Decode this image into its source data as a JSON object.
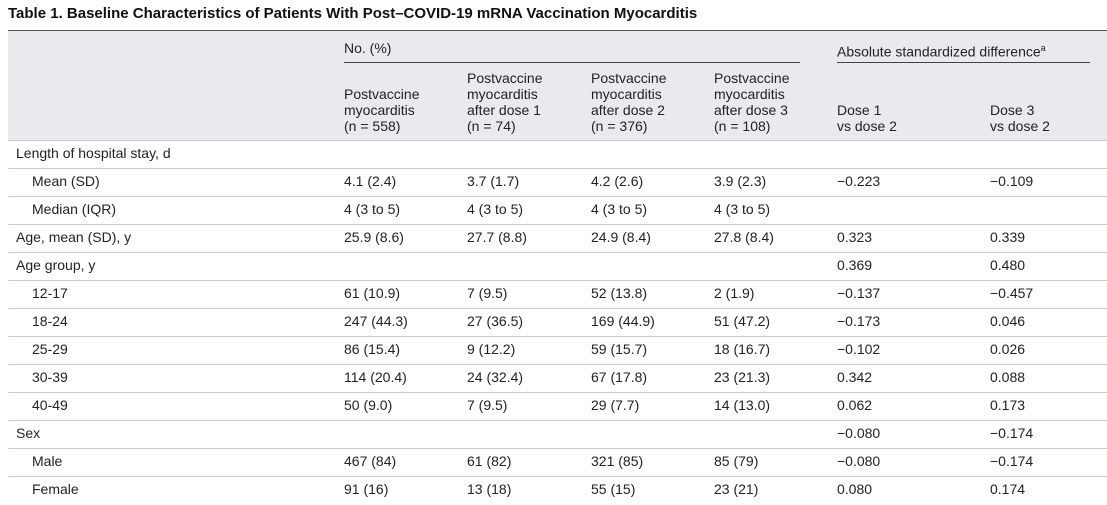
{
  "title": "Table 1. Baseline Characteristics of Patients With Post–COVID-19 mRNA Vaccination Myocarditis",
  "table": {
    "group_headers": [
      {
        "label": "No. (%)"
      },
      {
        "label": "Absolute standardized difference",
        "footnote": "a"
      }
    ],
    "columns": [
      [
        "Postvaccine",
        "myocarditis",
        "(n = 558)"
      ],
      [
        "Postvaccine",
        "myocarditis",
        "after dose 1",
        "(n = 74)"
      ],
      [
        "Postvaccine",
        "myocarditis",
        "after dose 2",
        "(n = 376)"
      ],
      [
        "Postvaccine",
        "myocarditis",
        "after dose 3",
        "(n = 108)"
      ],
      [
        "Dose 1",
        "vs dose 2"
      ],
      [
        "Dose 3",
        "vs dose 2"
      ]
    ],
    "rows": [
      {
        "label": "Length of hospital stay, d",
        "indent": false,
        "cells": [
          null,
          null,
          null,
          null,
          null,
          null
        ]
      },
      {
        "label": "Mean (SD)",
        "indent": true,
        "cells": [
          "4.1 (2.4)",
          "3.7 (1.7)",
          "4.2 (2.6)",
          "3.9 (2.3)",
          "−0.223",
          "−0.109"
        ]
      },
      {
        "label": "Median (IQR)",
        "indent": true,
        "cells": [
          "4 (3 to 5)",
          "4 (3 to 5)",
          "4 (3 to 5)",
          "4 (3 to 5)",
          null,
          null
        ]
      },
      {
        "label": "Age, mean (SD), y",
        "indent": false,
        "cells": [
          "25.9 (8.6)",
          "27.7 (8.8)",
          "24.9 (8.4)",
          "27.8 (8.4)",
          "0.323",
          "0.339"
        ]
      },
      {
        "label": "Age group, y",
        "indent": false,
        "cells": [
          null,
          null,
          null,
          null,
          "0.369",
          "0.480"
        ]
      },
      {
        "label": "12-17",
        "indent": true,
        "cells": [
          "61 (10.9)",
          "7 (9.5)",
          "52 (13.8)",
          "2 (1.9)",
          "−0.137",
          "−0.457"
        ]
      },
      {
        "label": "18-24",
        "indent": true,
        "cells": [
          "247 (44.3)",
          "27 (36.5)",
          "169 (44.9)",
          "51 (47.2)",
          "−0.173",
          "0.046"
        ]
      },
      {
        "label": "25-29",
        "indent": true,
        "cells": [
          "86 (15.4)",
          "9 (12.2)",
          "59 (15.7)",
          "18 (16.7)",
          "−0.102",
          "0.026"
        ]
      },
      {
        "label": "30-39",
        "indent": true,
        "cells": [
          "114 (20.4)",
          "24 (32.4)",
          "67 (17.8)",
          "23 (21.3)",
          "0.342",
          "0.088"
        ]
      },
      {
        "label": "40-49",
        "indent": true,
        "cells": [
          "50 (9.0)",
          "7 (9.5)",
          "29 (7.7)",
          "14 (13.0)",
          "0.062",
          "0.173"
        ]
      },
      {
        "label": "Sex",
        "indent": false,
        "cells": [
          null,
          null,
          null,
          null,
          "−0.080",
          "−0.174"
        ]
      },
      {
        "label": "Male",
        "indent": true,
        "cells": [
          "467 (84)",
          "61 (82)",
          "321 (85)",
          "85 (79)",
          "−0.080",
          "−0.174"
        ]
      },
      {
        "label": "Female",
        "indent": true,
        "cells": [
          "91 (16)",
          "13 (18)",
          "55 (15)",
          "23 (21)",
          "0.080",
          "0.174"
        ]
      }
    ]
  }
}
